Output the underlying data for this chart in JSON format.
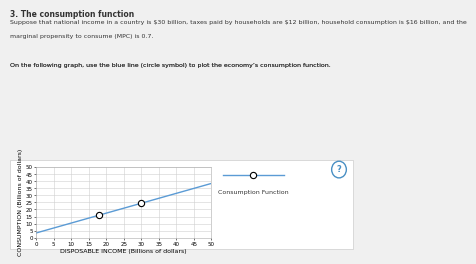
{
  "title": "3. The consumption function",
  "subtitle_lines": [
    "Suppose that national income in a country is $30 billion, taxes paid by households are $12 billion, household consumption is $16 billion, and the",
    "marginal propensity to consume (MPC) is 0.7.",
    "",
    "On the following graph, use the blue line (circle symbol) to plot the economy’s consumption function."
  ],
  "xlabel": "DISPOSABLE INCOME (Billions of dollars)",
  "ylabel": "CONSUMPTION (Billions of dollars)",
  "xlim": [
    0,
    50
  ],
  "ylim": [
    0,
    50
  ],
  "xticks": [
    0,
    5,
    10,
    15,
    20,
    25,
    30,
    35,
    40,
    45,
    50
  ],
  "yticks": [
    0,
    5,
    10,
    15,
    20,
    25,
    30,
    35,
    40,
    45,
    50
  ],
  "mpc": 0.7,
  "intercept": 3.4,
  "marker_points_x": [
    18,
    30
  ],
  "marker_points_y": [
    16.0,
    24.4
  ],
  "line_color": "#5B9BD5",
  "marker_facecolor": "white",
  "marker_edge_color": "black",
  "legend_label": "Consumption Function",
  "page_bg_color": "#f0f0f0",
  "panel_bg_color": "#ffffff",
  "plot_bg_color": "#ffffff",
  "grid_color": "#d0d0d0",
  "text_color": "#333333",
  "title_fontsize": 5.5,
  "body_fontsize": 4.5,
  "axis_fontsize": 4.5,
  "tick_fontsize": 4.0,
  "legend_fontsize": 4.5,
  "question_color": "#4A90C4"
}
